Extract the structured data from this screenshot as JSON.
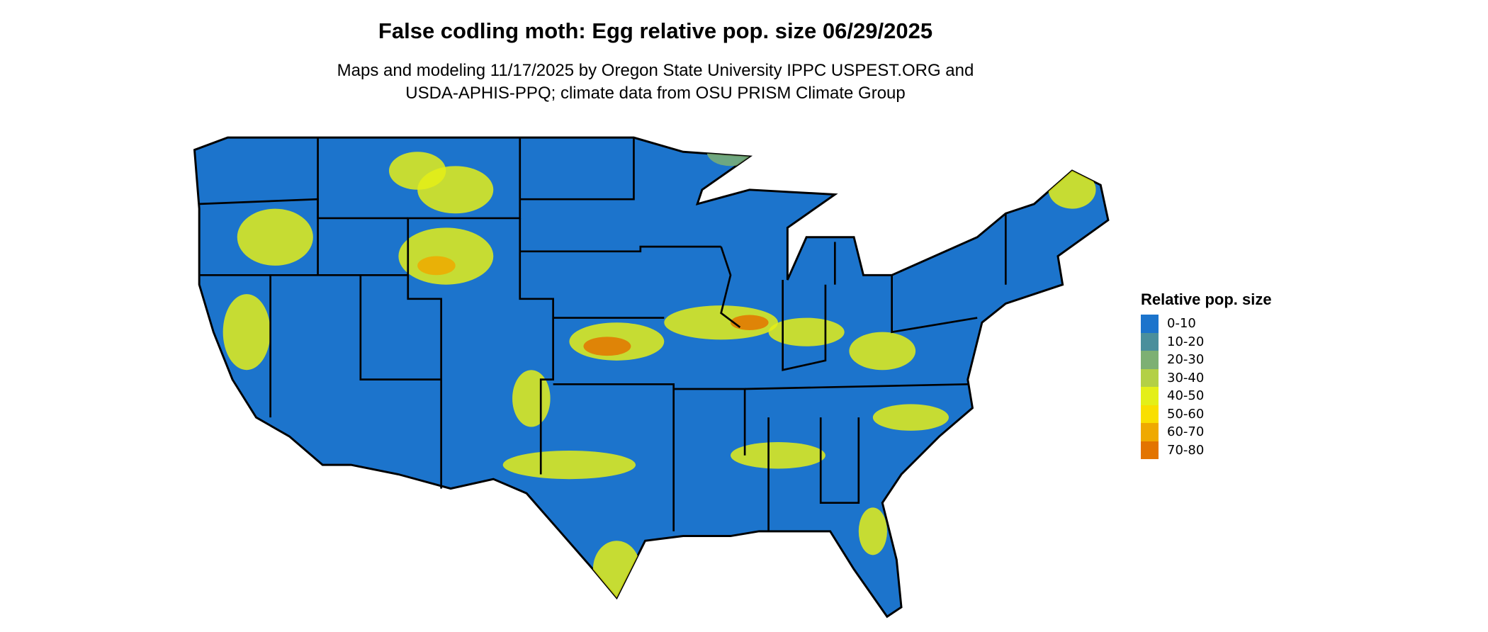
{
  "title": "False codling moth: Egg relative pop. size 06/29/2025",
  "subtitle_line1": "Maps and modeling 11/17/2025 by Oregon State University IPPC USPEST.ORG and",
  "subtitle_line2": "USDA-APHIS-PPQ; climate data from OSU PRISM Climate Group",
  "legend": {
    "title": "Relative pop. size",
    "items": [
      {
        "label": "0-10",
        "color": "#1c74cc"
      },
      {
        "label": "10-20",
        "color": "#4a8f9c"
      },
      {
        "label": "20-30",
        "color": "#7db073"
      },
      {
        "label": "30-40",
        "color": "#b3d046"
      },
      {
        "label": "40-50",
        "color": "#e4ef18"
      },
      {
        "label": "50-60",
        "color": "#f9df00"
      },
      {
        "label": "60-70",
        "color": "#efa900"
      },
      {
        "label": "70-80",
        "color": "#e37400"
      }
    ]
  }
}
